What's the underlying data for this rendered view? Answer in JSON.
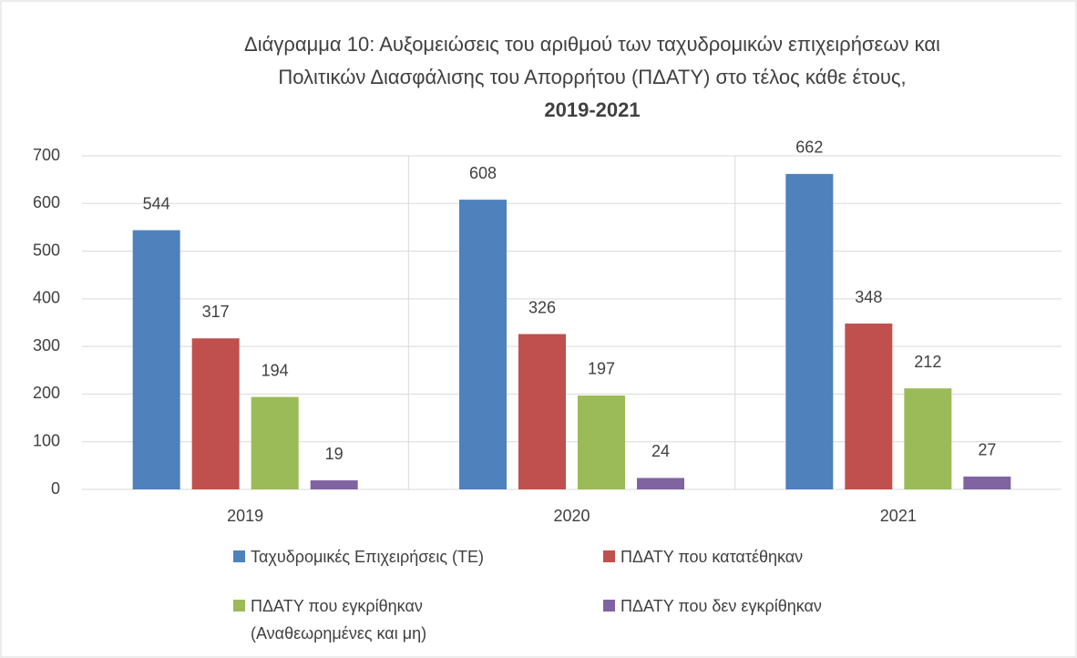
{
  "chart_data": {
    "type": "bar",
    "title": [
      "Διάγραμμα 10: Αυξομειώσεις του αριθμού των ταχυδρομικών επιχειρήσεων και",
      "Πολιτικών Διασφάλισης του Απορρήτου (ΠΔΑΤΥ) στο τέλος κάθε έτους,",
      "2019-2021"
    ],
    "categories": [
      "2019",
      "2020",
      "2021"
    ],
    "series": [
      {
        "name": "Ταχυδρομικές Επιχειρήσεις (ΤΕ)",
        "color": "#4f81bd",
        "values": [
          544,
          608,
          662
        ]
      },
      {
        "name": "ΠΔΑΤΥ που κατατέθηκαν",
        "color": "#c0504d",
        "values": [
          317,
          326,
          348
        ]
      },
      {
        "name": "ΠΔΑΤΥ που εγκρίθηκαν (Αναθεωρημένες και μη)",
        "color": "#9bbb59",
        "values": [
          194,
          197,
          212
        ]
      },
      {
        "name": "ΠΔΑΤΥ που δεν εγκρίθηκαν",
        "color": "#8064a2",
        "values": [
          19,
          24,
          27
        ]
      }
    ],
    "ylim": [
      0,
      700
    ],
    "yticks": [
      0,
      100,
      200,
      300,
      400,
      500,
      600,
      700
    ],
    "grid": true,
    "legend": "bottom"
  }
}
